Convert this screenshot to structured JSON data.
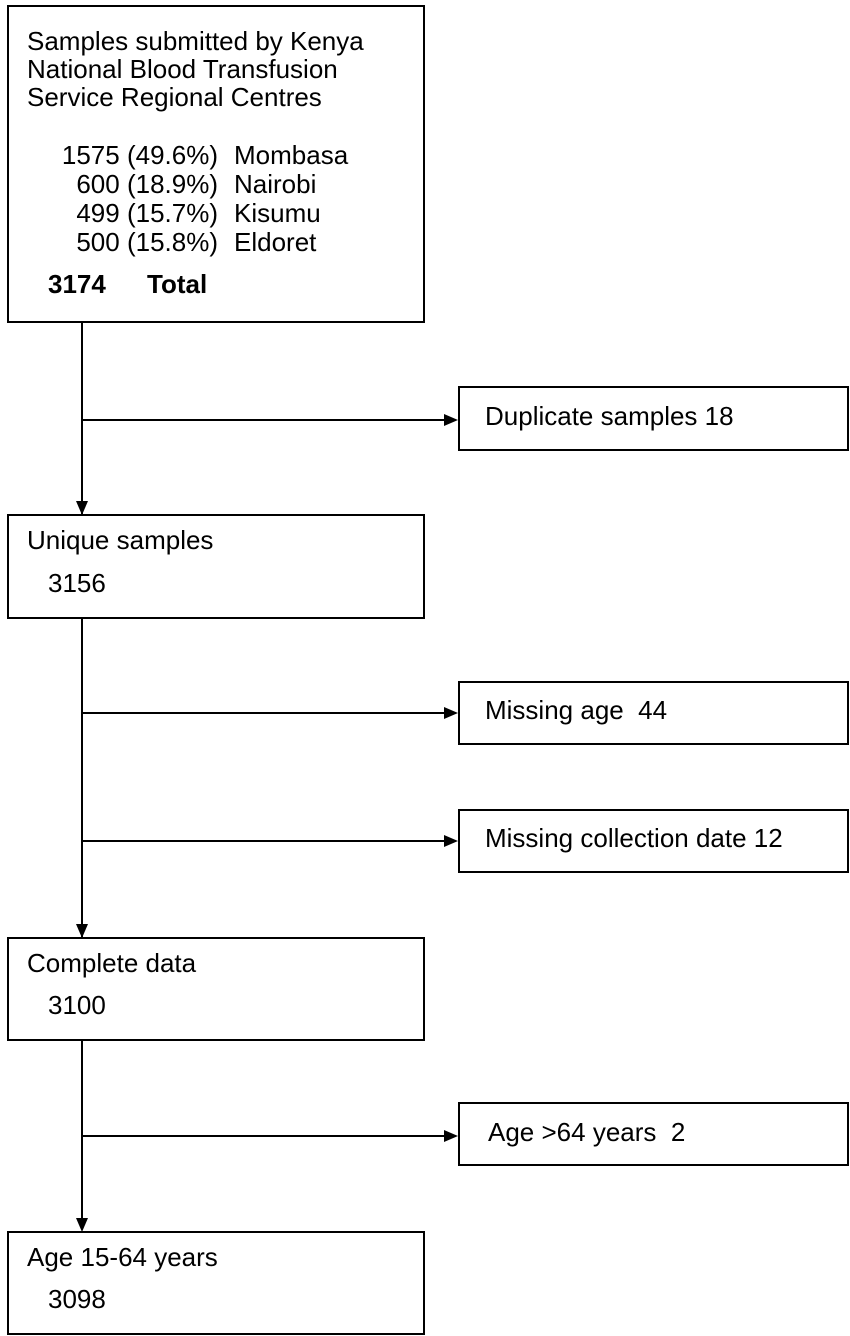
{
  "source_box": {
    "title_lines": [
      "Samples submitted by Kenya",
      "National Blood Transfusion",
      "Service Regional Centres"
    ],
    "rows": [
      {
        "count": "1575 (49.6%)",
        "site": "Mombasa"
      },
      {
        "count": "600 (18.9%)",
        "site": "Nairobi"
      },
      {
        "count": "499 (15.7%)",
        "site": "Kisumu"
      },
      {
        "count": "500 (15.8%)",
        "site": "Eldoret"
      }
    ],
    "total": {
      "count": "3174",
      "label": "Total"
    }
  },
  "steps": [
    {
      "label": "Unique samples",
      "count": "3156"
    },
    {
      "label": "Complete data",
      "count": "3100"
    },
    {
      "label": "Age 15-64 years",
      "count": "3098"
    }
  ],
  "exclusions": [
    {
      "label": "Duplicate samples 18"
    },
    {
      "label": "Missing age  44"
    },
    {
      "label": "Missing collection date 12"
    },
    {
      "label": "Age >64 years  2"
    }
  ]
}
